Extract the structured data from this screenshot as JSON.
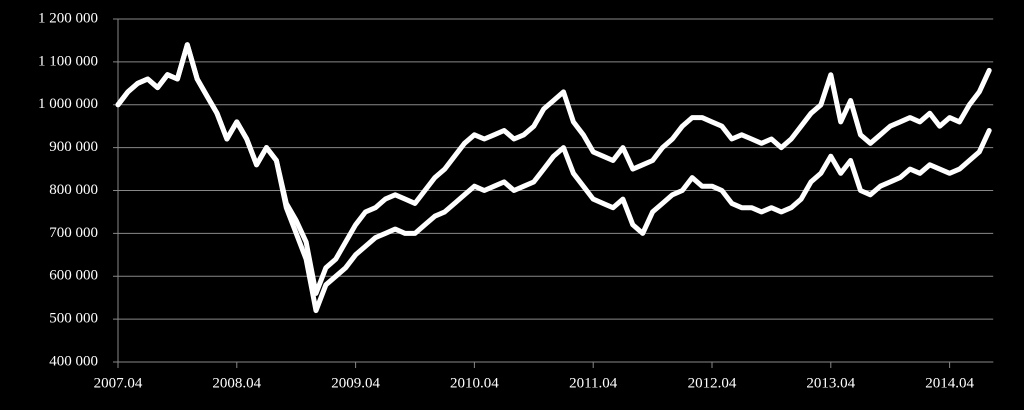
{
  "chart_data": {
    "type": "line",
    "x": [
      "2007.04",
      "2007.05",
      "2007.06",
      "2007.07",
      "2007.08",
      "2007.09",
      "2007.10",
      "2007.11",
      "2007.12",
      "2008.01",
      "2008.02",
      "2008.03",
      "2008.04",
      "2008.05",
      "2008.06",
      "2008.07",
      "2008.08",
      "2008.09",
      "2008.10",
      "2008.11",
      "2008.12",
      "2009.01",
      "2009.02",
      "2009.03",
      "2009.04",
      "2009.05",
      "2009.06",
      "2009.07",
      "2009.08",
      "2009.09",
      "2009.10",
      "2009.11",
      "2009.12",
      "2010.01",
      "2010.02",
      "2010.03",
      "2010.04",
      "2010.05",
      "2010.06",
      "2010.07",
      "2010.08",
      "2010.09",
      "2010.10",
      "2010.11",
      "2010.12",
      "2011.01",
      "2011.02",
      "2011.03",
      "2011.04",
      "2011.05",
      "2011.06",
      "2011.07",
      "2011.08",
      "2011.09",
      "2011.10",
      "2011.11",
      "2011.12",
      "2012.01",
      "2012.02",
      "2012.03",
      "2012.04",
      "2012.05",
      "2012.06",
      "2012.07",
      "2012.08",
      "2012.09",
      "2012.10",
      "2012.11",
      "2012.12",
      "2013.01",
      "2013.02",
      "2013.03",
      "2013.04",
      "2013.05",
      "2013.06",
      "2013.07",
      "2013.08",
      "2013.09",
      "2013.10",
      "2013.11",
      "2013.12",
      "2014.01",
      "2014.02",
      "2014.03",
      "2014.04",
      "2014.05",
      "2014.06",
      "2014.07",
      "2014.08"
    ],
    "series": [
      {
        "color": "#ffffff",
        "values": [
          1000000,
          1030000,
          1050000,
          1060000,
          1040000,
          1070000,
          1060000,
          1140000,
          1060000,
          1020000,
          980000,
          920000,
          960000,
          920000,
          860000,
          900000,
          870000,
          770000,
          730000,
          680000,
          560000,
          620000,
          640000,
          680000,
          720000,
          750000,
          760000,
          780000,
          790000,
          780000,
          770000,
          800000,
          830000,
          850000,
          880000,
          910000,
          930000,
          920000,
          930000,
          940000,
          920000,
          930000,
          950000,
          990000,
          1010000,
          1030000,
          960000,
          930000,
          890000,
          880000,
          870000,
          900000,
          850000,
          860000,
          870000,
          900000,
          920000,
          950000,
          970000,
          970000,
          960000,
          950000,
          920000,
          930000,
          920000,
          910000,
          920000,
          900000,
          920000,
          950000,
          980000,
          1000000,
          1070000,
          960000,
          1010000,
          930000,
          910000,
          930000,
          950000,
          960000,
          970000,
          960000,
          980000,
          950000,
          970000,
          960000,
          1000000,
          1030000,
          1080000
        ]
      },
      {
        "color": "#ffffff",
        "values": [
          1000000,
          1030000,
          1050000,
          1060000,
          1040000,
          1070000,
          1060000,
          1140000,
          1060000,
          1020000,
          980000,
          920000,
          960000,
          920000,
          860000,
          900000,
          870000,
          760000,
          700000,
          640000,
          520000,
          580000,
          600000,
          620000,
          650000,
          670000,
          690000,
          700000,
          710000,
          700000,
          700000,
          720000,
          740000,
          750000,
          770000,
          790000,
          810000,
          800000,
          810000,
          820000,
          800000,
          810000,
          820000,
          850000,
          880000,
          900000,
          840000,
          810000,
          780000,
          770000,
          760000,
          780000,
          720000,
          700000,
          750000,
          770000,
          790000,
          800000,
          830000,
          810000,
          810000,
          800000,
          770000,
          760000,
          760000,
          750000,
          760000,
          750000,
          760000,
          780000,
          820000,
          840000,
          880000,
          840000,
          870000,
          800000,
          790000,
          810000,
          820000,
          830000,
          850000,
          840000,
          860000,
          850000,
          840000,
          850000,
          870000,
          890000,
          940000
        ]
      }
    ],
    "xticks": [
      "2007.04",
      "2008.04",
      "2009.04",
      "2010.04",
      "2011.04",
      "2012.04",
      "2013.04",
      "2014.04"
    ],
    "ylim": [
      400000,
      1200000
    ],
    "yticks": [
      {
        "value": 400000,
        "label": "400 000"
      },
      {
        "value": 500000,
        "label": "500 000"
      },
      {
        "value": 600000,
        "label": "600 000"
      },
      {
        "value": 700000,
        "label": "700 000"
      },
      {
        "value": 800000,
        "label": "800 000"
      },
      {
        "value": 900000,
        "label": "900 000"
      },
      {
        "value": 1000000,
        "label": "1 000 000"
      },
      {
        "value": 1100000,
        "label": "1 100 000"
      },
      {
        "value": 1200000,
        "label": "1 200 000"
      }
    ],
    "grid": true
  }
}
